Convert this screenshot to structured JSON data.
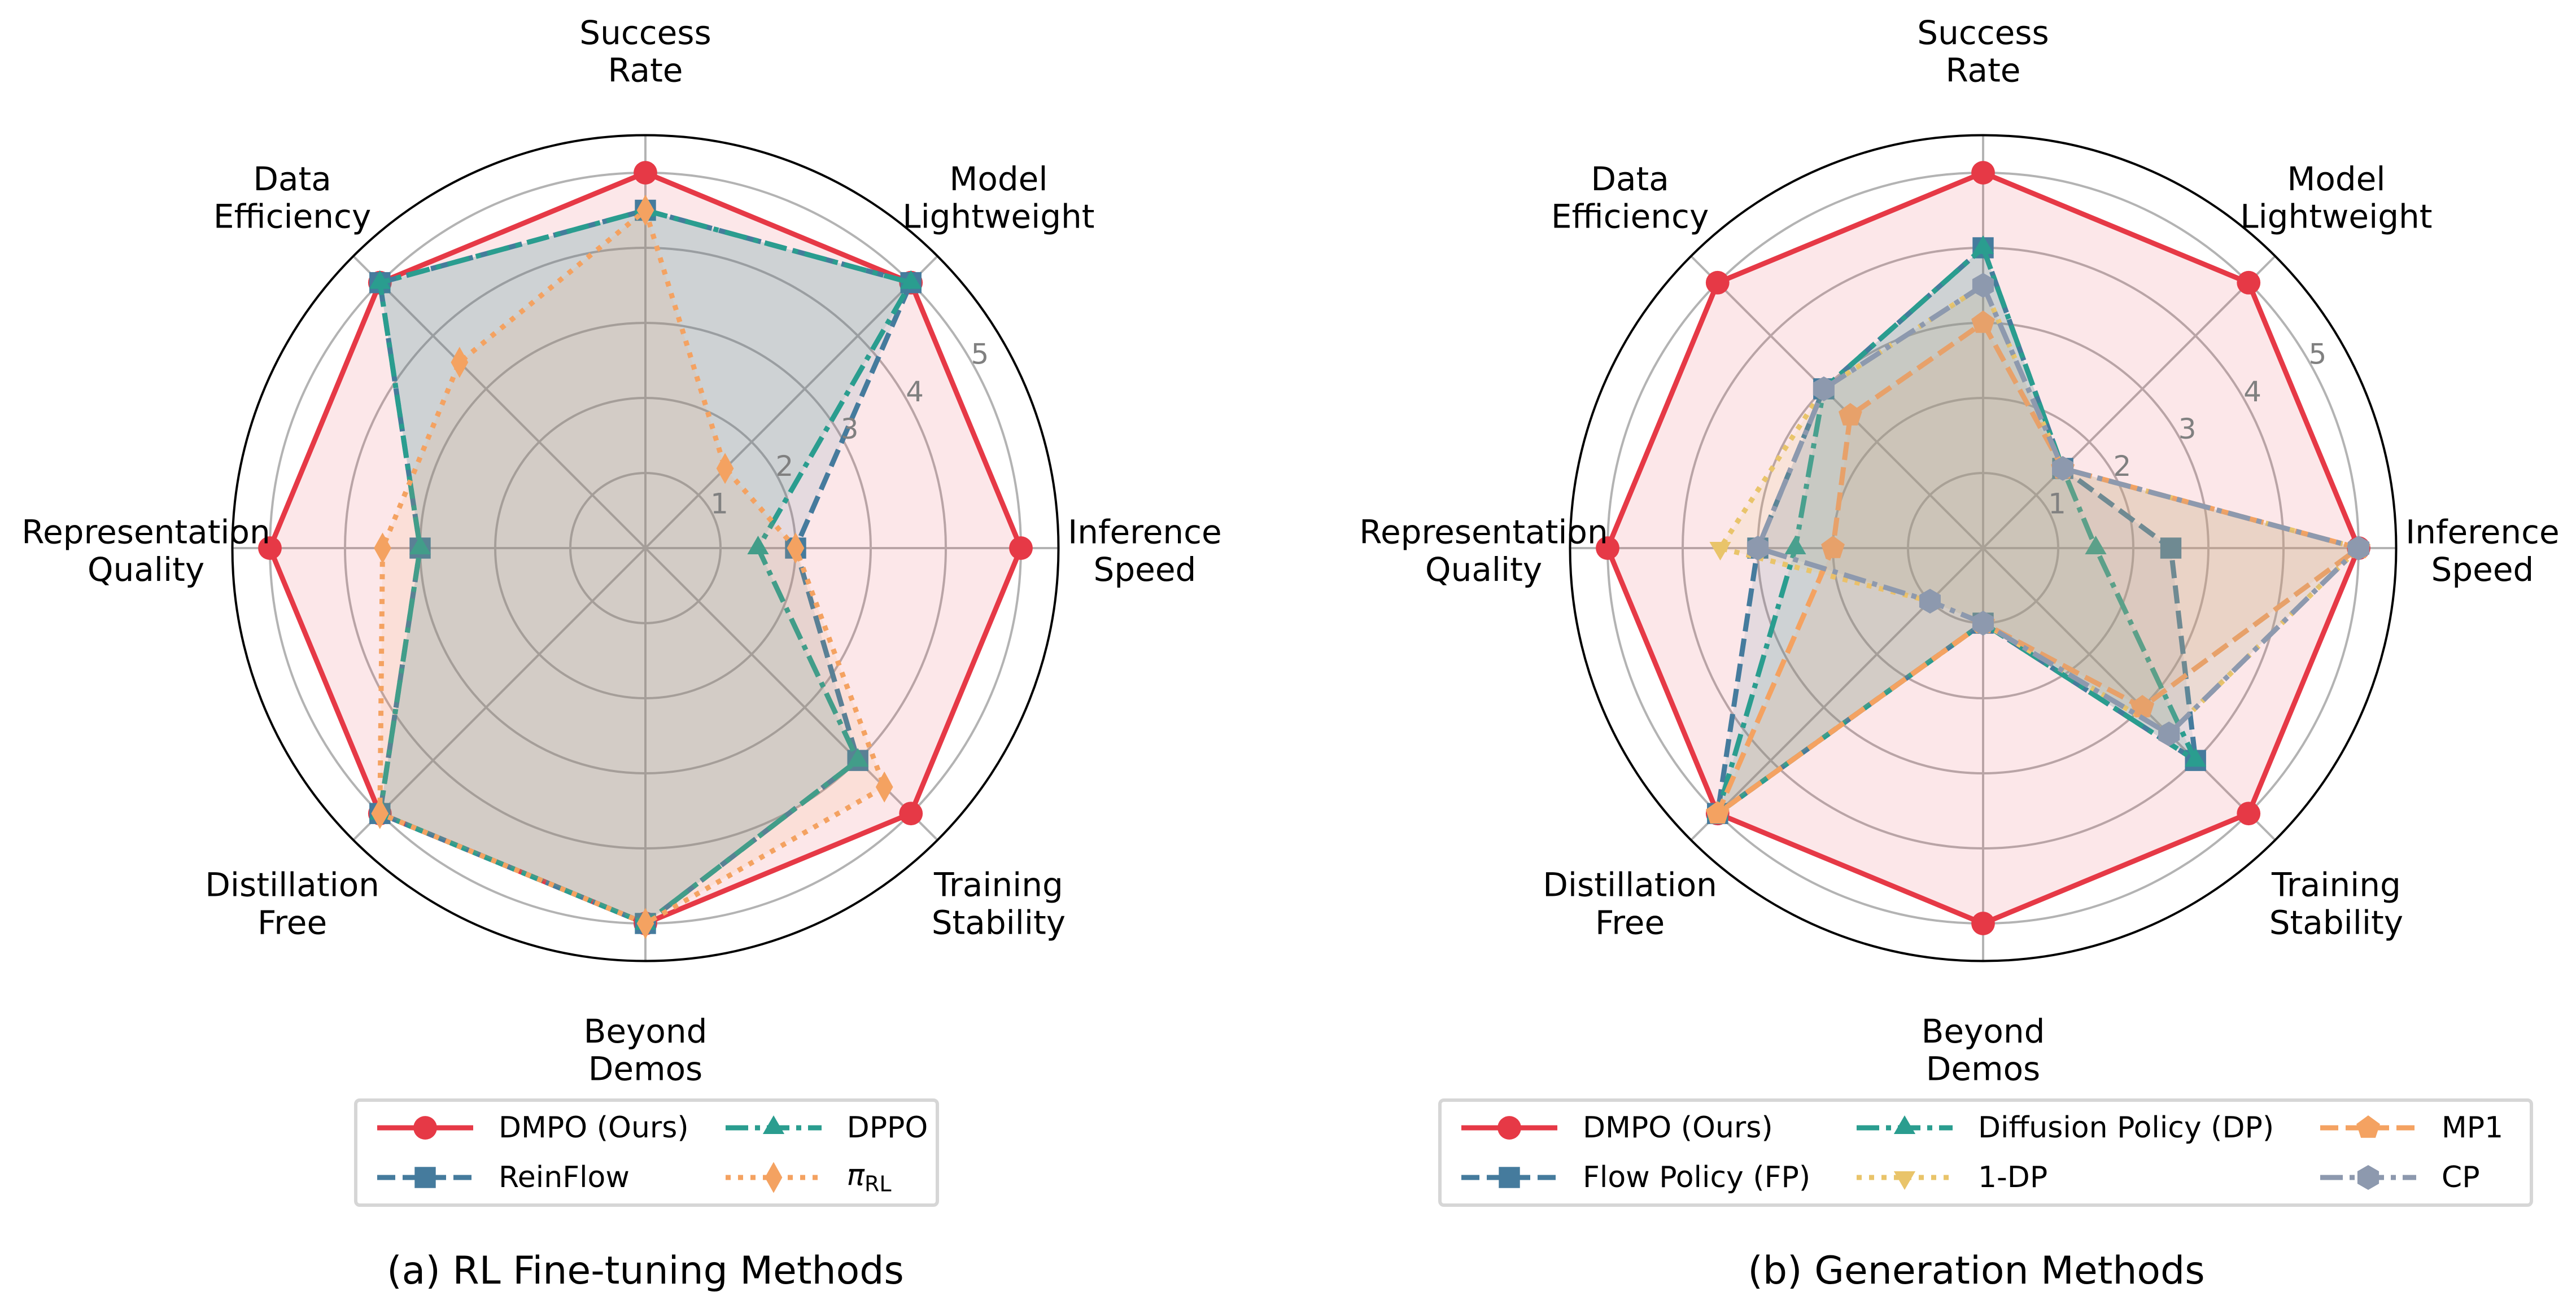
{
  "chart_data": [
    {
      "type": "radar",
      "caption": "(a) RL Fine-tuning Methods",
      "axes": [
        [
          "Success",
          "Rate"
        ],
        [
          "Model",
          "Lightweight"
        ],
        [
          "Inference",
          "Speed"
        ],
        [
          "Training",
          "Stability"
        ],
        [
          "Beyond",
          "Demos"
        ],
        [
          "Distillation",
          "Free"
        ],
        [
          "Representation",
          "Quality"
        ],
        [
          "Data",
          "Efficiency"
        ]
      ],
      "r_ticks": [
        "1",
        "2",
        "3",
        "4",
        "5"
      ],
      "rlim": [
        0,
        5.5
      ],
      "grid": true,
      "legend_placement": "bottom",
      "legend_columns": 2,
      "series": [
        {
          "name": "DMPO (Ours)",
          "color": "#E63946",
          "linestyle": "solid",
          "marker": "circle",
          "values": [
            5,
            5,
            5,
            5,
            5,
            5,
            5,
            5
          ]
        },
        {
          "name": "ReinFlow",
          "color": "#457B9D",
          "linestyle": "dashed",
          "marker": "square",
          "values": [
            4.5,
            5,
            2,
            4,
            5,
            5,
            3,
            5
          ]
        },
        {
          "name": "DPPO",
          "color": "#2A9D8F",
          "linestyle": "dashdot",
          "marker": "triangle-up",
          "values": [
            4.5,
            5,
            1.5,
            4,
            5,
            5,
            3,
            5
          ]
        },
        {
          "name": "π_RL",
          "color": "#F4A261",
          "linestyle": "dotted",
          "marker": "diamond",
          "values": [
            4.5,
            1.5,
            2,
            4.5,
            5,
            5,
            3.5,
            3.5
          ]
        }
      ]
    },
    {
      "type": "radar",
      "caption": "(b) Generation Methods",
      "axes": [
        [
          "Success",
          "Rate"
        ],
        [
          "Model",
          "Lightweight"
        ],
        [
          "Inference",
          "Speed"
        ],
        [
          "Training",
          "Stability"
        ],
        [
          "Beyond",
          "Demos"
        ],
        [
          "Distillation",
          "Free"
        ],
        [
          "Representation",
          "Quality"
        ],
        [
          "Data",
          "Efficiency"
        ]
      ],
      "r_ticks": [
        "1",
        "2",
        "3",
        "4",
        "5"
      ],
      "rlim": [
        0,
        5.5
      ],
      "grid": true,
      "legend_placement": "bottom",
      "legend_columns": 3,
      "series": [
        {
          "name": "DMPO (Ours)",
          "color": "#E63946",
          "linestyle": "solid",
          "marker": "circle",
          "values": [
            5,
            5,
            5,
            5,
            5,
            5,
            5,
            5
          ]
        },
        {
          "name": "Flow Policy (FP)",
          "color": "#457B9D",
          "linestyle": "dashed",
          "marker": "square",
          "values": [
            4,
            1.5,
            2.5,
            4,
            1,
            5,
            3,
            3
          ]
        },
        {
          "name": "Diffusion Policy (DP)",
          "color": "#2A9D8F",
          "linestyle": "dashdot",
          "marker": "triangle-up",
          "values": [
            4,
            1.5,
            1.5,
            4,
            1,
            5,
            2.5,
            3
          ]
        },
        {
          "name": "1-DP",
          "color": "#E9C46A",
          "linestyle": "dotted",
          "marker": "triangle-down",
          "values": [
            3.5,
            1.5,
            5,
            3.5,
            1,
            1,
            3.5,
            3
          ]
        },
        {
          "name": "MP1",
          "color": "#F4A261",
          "linestyle": "dashed",
          "marker": "pentagon",
          "values": [
            3,
            1.5,
            5,
            3,
            1,
            5,
            2,
            2.5
          ]
        },
        {
          "name": "CP",
          "color": "#8D99AE",
          "linestyle": "dashdot",
          "marker": "hexagon",
          "values": [
            3.5,
            1.5,
            5,
            3.5,
            1,
            1,
            3,
            3
          ]
        }
      ]
    }
  ]
}
